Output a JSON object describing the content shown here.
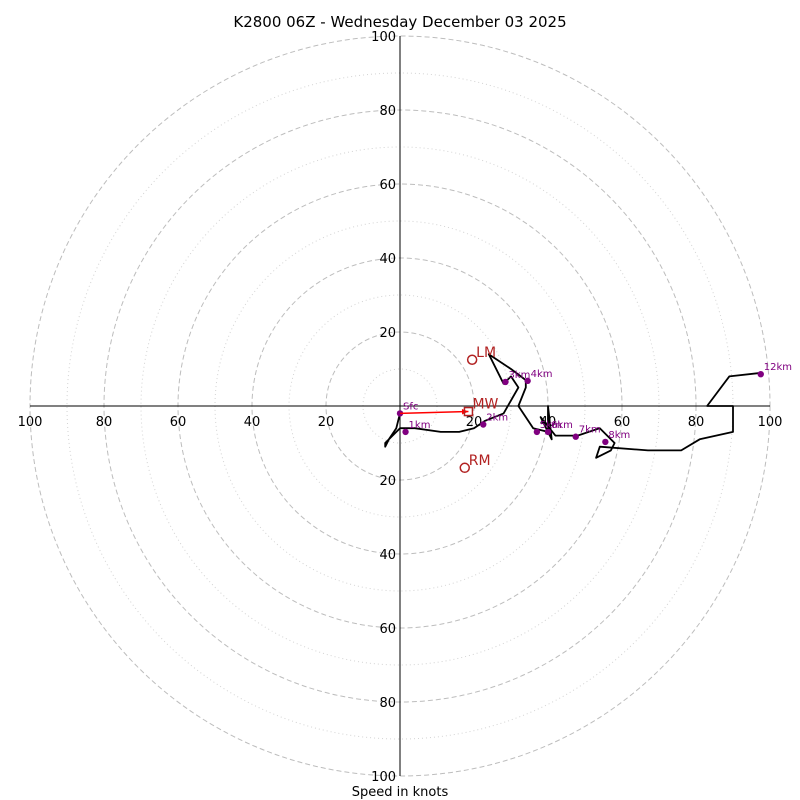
{
  "chart_data": {
    "type": "line",
    "subtype": "hodograph",
    "title": "K2800 06Z - Wednesday December 03 2025",
    "xlabel": "Speed in knots",
    "ring_max": 100,
    "major_rings": [
      20,
      40,
      60,
      80,
      100
    ],
    "minor_rings": [
      10,
      30,
      50,
      70,
      90
    ],
    "axis_tick_labels": {
      "left": [
        "100",
        "80",
        "60",
        "40",
        "20"
      ],
      "right": [
        "20",
        "40",
        "60",
        "80",
        "100"
      ],
      "top": [
        "20",
        "40",
        "60",
        "80",
        "100"
      ],
      "bottom": [
        "20",
        "40",
        "60",
        "80",
        "100"
      ]
    },
    "trace": [
      [
        0,
        -2
      ],
      [
        -1,
        -6
      ],
      [
        -3,
        -9
      ],
      [
        -4,
        -11
      ],
      [
        -4,
        -10
      ],
      [
        0,
        -6
      ],
      [
        4,
        -6
      ],
      [
        11,
        -7
      ],
      [
        16,
        -7
      ],
      [
        20,
        -6
      ],
      [
        23,
        -4
      ],
      [
        28,
        -2
      ],
      [
        32,
        5
      ],
      [
        30,
        8
      ],
      [
        28,
        6
      ],
      [
        24,
        14
      ],
      [
        30,
        10
      ],
      [
        34,
        7
      ],
      [
        34,
        5
      ],
      [
        32,
        0
      ],
      [
        36,
        -6
      ],
      [
        40,
        -7
      ],
      [
        40,
        0
      ],
      [
        41,
        -9
      ],
      [
        38,
        -3
      ],
      [
        42,
        -8
      ],
      [
        48,
        -8
      ],
      [
        54,
        -6
      ],
      [
        58,
        -10
      ],
      [
        57,
        -12
      ],
      [
        53,
        -14
      ],
      [
        54,
        -11
      ],
      [
        67,
        -12
      ],
      [
        76,
        -12
      ],
      [
        81,
        -9
      ],
      [
        90,
        -7
      ],
      [
        90,
        0
      ],
      [
        83,
        0
      ],
      [
        89,
        8
      ],
      [
        98,
        9
      ]
    ],
    "height_points": [
      {
        "label": "Sfc",
        "u": 0,
        "v": -2
      },
      {
        "label": "1km",
        "u": 1.5,
        "v": -7
      },
      {
        "label": "2km",
        "u": 22.5,
        "v": -5
      },
      {
        "label": "3km",
        "u": 28.5,
        "v": 6.5
      },
      {
        "label": "4km",
        "u": 34.5,
        "v": 6.8
      },
      {
        "label": "5km",
        "u": 37,
        "v": -7
      },
      {
        "label": "6km",
        "u": 40,
        "v": -7
      },
      {
        "label": "7km",
        "u": 47.5,
        "v": -8.3
      },
      {
        "label": "8km",
        "u": 55.5,
        "v": -9.7
      },
      {
        "label": "12km",
        "u": 97.5,
        "v": 8.6
      }
    ],
    "storm_motion": [
      {
        "label": "LM",
        "u": 19.5,
        "v": 12.5
      },
      {
        "label": "MW",
        "u": 18.5,
        "v": -1.5
      },
      {
        "label": "RM",
        "u": 17.5,
        "v": -16.7
      }
    ],
    "storm_vector": {
      "from_label": "Sfc",
      "to_label": "MW"
    }
  }
}
